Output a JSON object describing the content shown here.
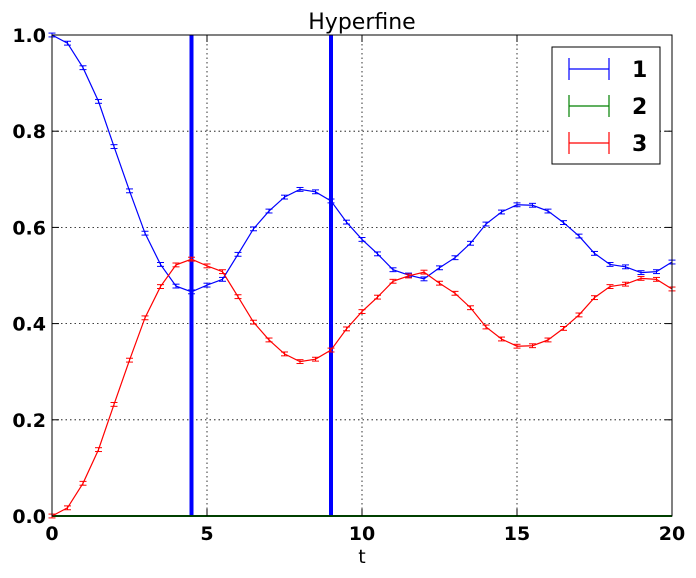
{
  "chart_data": {
    "type": "line",
    "title": "Hyperfine",
    "xlabel": "t",
    "ylabel": "",
    "xlim": [
      0,
      20
    ],
    "ylim": [
      0.0,
      1.0
    ],
    "grid": true,
    "legend_position": "top-right",
    "x_ticks": [
      "0",
      "5",
      "10",
      "15",
      "20"
    ],
    "y_ticks": [
      "0.0",
      "0.2",
      "0.4",
      "0.6",
      "0.8",
      "1.0"
    ],
    "vertical_lines": [
      {
        "x": 4.5,
        "color": "#0000ff"
      },
      {
        "x": 9.0,
        "color": "#0000ff"
      }
    ],
    "x": [
      0,
      0.5,
      1,
      1.5,
      2,
      2.5,
      3,
      3.5,
      4,
      4.5,
      5,
      5.5,
      6,
      6.5,
      7,
      7.5,
      8,
      8.5,
      9,
      9.5,
      10,
      10.5,
      11,
      11.5,
      12,
      12.5,
      13,
      13.5,
      14,
      14.5,
      15,
      15.5,
      16,
      16.5,
      17,
      17.5,
      18,
      18.5,
      19,
      19.5,
      20
    ],
    "series": [
      {
        "name": "1",
        "color": "#0000ff",
        "values": [
          1.0,
          0.983,
          0.932,
          0.862,
          0.768,
          0.676,
          0.588,
          0.523,
          0.478,
          0.466,
          0.48,
          0.492,
          0.544,
          0.597,
          0.634,
          0.663,
          0.679,
          0.674,
          0.655,
          0.611,
          0.575,
          0.545,
          0.512,
          0.501,
          0.493,
          0.516,
          0.537,
          0.567,
          0.607,
          0.632,
          0.647,
          0.646,
          0.634,
          0.61,
          0.582,
          0.546,
          0.523,
          0.518,
          0.506,
          0.508,
          0.528
        ],
        "err": 0.004
      },
      {
        "name": "2",
        "color": "#008000",
        "values": [
          0,
          0,
          0,
          0,
          0,
          0,
          0,
          0,
          0,
          0,
          0,
          0,
          0,
          0,
          0,
          0,
          0,
          0,
          0,
          0,
          0,
          0,
          0,
          0,
          0,
          0,
          0,
          0,
          0,
          0,
          0,
          0,
          0,
          0,
          0,
          0,
          0,
          0,
          0,
          0,
          0
        ],
        "err": 0.0
      },
      {
        "name": "3",
        "color": "#ff0000",
        "values": [
          0.0,
          0.017,
          0.068,
          0.138,
          0.232,
          0.324,
          0.412,
          0.477,
          0.522,
          0.534,
          0.52,
          0.508,
          0.456,
          0.403,
          0.366,
          0.337,
          0.321,
          0.326,
          0.345,
          0.389,
          0.425,
          0.455,
          0.488,
          0.499,
          0.507,
          0.484,
          0.463,
          0.433,
          0.393,
          0.368,
          0.353,
          0.354,
          0.366,
          0.39,
          0.418,
          0.454,
          0.477,
          0.482,
          0.494,
          0.492,
          0.472
        ],
        "err": 0.004
      }
    ]
  }
}
